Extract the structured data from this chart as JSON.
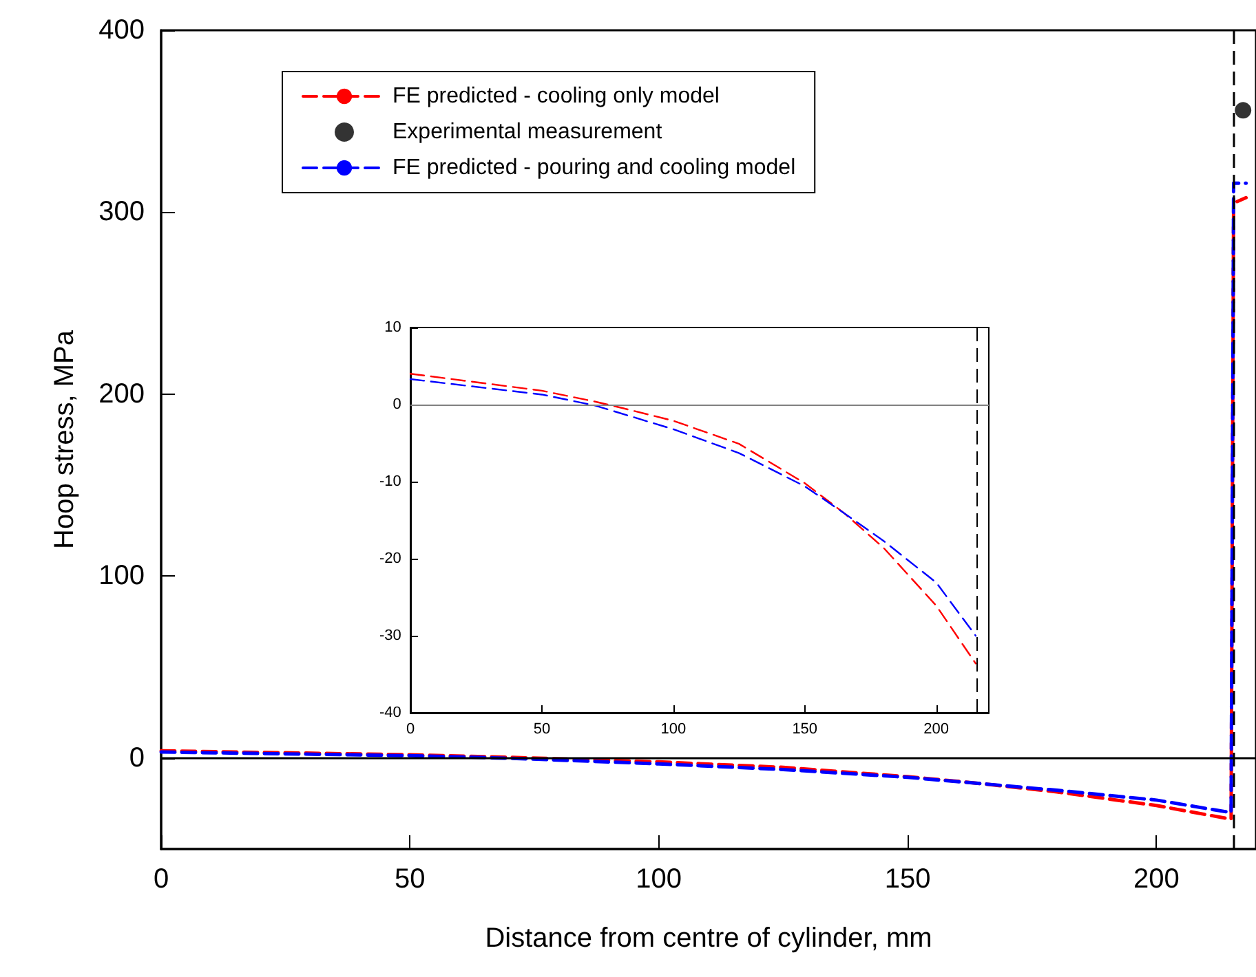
{
  "chart_data": [
    {
      "type": "line",
      "xlabel": "Distance from centre of cylinder, mm",
      "ylabel": "Hoop stress, MPa",
      "xlim": [
        0,
        220
      ],
      "xticks": [
        0,
        50,
        100,
        150,
        200
      ],
      "ylim": [
        -50,
        400
      ],
      "yticks": [
        0,
        100,
        200,
        300,
        400
      ],
      "grid": false,
      "legend": "top left",
      "series": [
        {
          "name": "FE predicted - cooling only model",
          "color": "#ff0000",
          "line_style": "dashed",
          "marker": "none",
          "x": [
            0,
            50,
            70,
            100,
            125,
            150,
            165,
            180,
            200,
            215,
            215.5,
            218
          ],
          "values": [
            4.0,
            1.8,
            0.4,
            -2.1,
            -5.1,
            -10.2,
            -14.1,
            -18.6,
            -26.1,
            -33.6,
            305,
            308
          ]
        },
        {
          "name": "Experimental measurement",
          "type": "scatter",
          "color": "#000000",
          "marker": "circle",
          "x": [
            217.4
          ],
          "values": [
            356
          ]
        },
        {
          "name": "FE predicted - pouring and cooling model",
          "color": "#0000ff",
          "line_style": "dashed",
          "marker": "none",
          "x": [
            0,
            50,
            70,
            100,
            125,
            150,
            165,
            180,
            200,
            215,
            215.5,
            218
          ],
          "values": [
            3.3,
            1.3,
            -0.1,
            -3.2,
            -6.3,
            -10.6,
            -14.1,
            -17.7,
            -23.1,
            -30.0,
            316,
            316
          ]
        }
      ],
      "ref_lines": [
        {
          "axis": "y",
          "value": 0,
          "color": "#000000",
          "line_style": "solid"
        },
        {
          "axis": "x",
          "value": 215.5,
          "color": "#000000",
          "line_style": "dashed"
        }
      ]
    },
    {
      "type": "line",
      "xlim": [
        0,
        220
      ],
      "xticks": [
        0,
        50,
        100,
        150,
        200
      ],
      "ylim": [
        -40,
        10
      ],
      "yticks": [
        -40,
        -30,
        -20,
        -10,
        0,
        10
      ],
      "grid": false,
      "legend": false,
      "series": [
        {
          "color": "#ff0000",
          "line_style": "dashed",
          "marker": "none",
          "x": [
            0,
            50,
            70,
            80,
            100,
            125,
            150,
            165,
            180,
            200,
            215
          ],
          "values": [
            4.0,
            1.8,
            0.4,
            -0.4,
            -2.1,
            -5.1,
            -10.2,
            -14.1,
            -18.6,
            -26.1,
            -33.6
          ]
        },
        {
          "color": "#0000ff",
          "line_style": "dashed",
          "marker": "none",
          "x": [
            0,
            50,
            70,
            100,
            125,
            150,
            165,
            180,
            200,
            215
          ],
          "values": [
            3.3,
            1.3,
            -0.1,
            -3.2,
            -6.3,
            -10.6,
            -14.1,
            -17.7,
            -23.1,
            -30.0
          ]
        }
      ],
      "ref_lines": [
        {
          "axis": "y",
          "value": 0,
          "color": "#808080",
          "line_style": "solid"
        },
        {
          "axis": "x",
          "value": 215.5,
          "color": "#000000",
          "line_style": "dashed"
        }
      ]
    }
  ]
}
